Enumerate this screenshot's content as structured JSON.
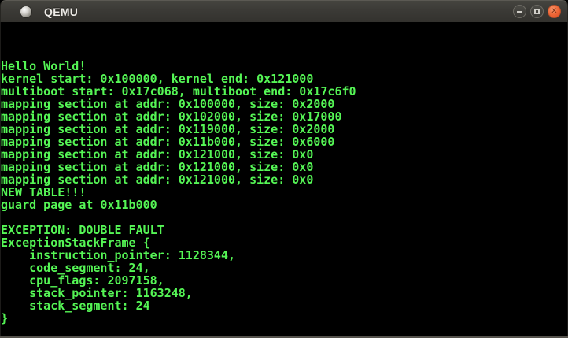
{
  "window": {
    "title": "QEMU",
    "controls": {
      "minimize": "minimize-window",
      "maximize": "maximize-window",
      "close": "close-window"
    }
  },
  "colors": {
    "terminal_text_green": "#55f555",
    "terminal_background": "#000000",
    "titlebar_background": "#3b3a36",
    "close_button_orange": "#ef6a3a"
  },
  "terminal": {
    "columns": 80,
    "rows": 25,
    "lines": [
      "",
      "",
      "",
      "Hello World!",
      "kernel start: 0x100000, kernel end: 0x121000",
      "multiboot start: 0x17c068, multiboot end: 0x17c6f0",
      "mapping section at addr: 0x100000, size: 0x2000",
      "mapping section at addr: 0x102000, size: 0x17000",
      "mapping section at addr: 0x119000, size: 0x2000",
      "mapping section at addr: 0x11b000, size: 0x6000",
      "mapping section at addr: 0x121000, size: 0x0",
      "mapping section at addr: 0x121000, size: 0x0",
      "mapping section at addr: 0x121000, size: 0x0",
      "NEW TABLE!!!",
      "guard page at 0x11b000",
      "",
      "EXCEPTION: DOUBLE FAULT",
      "ExceptionStackFrame {",
      "    instruction_pointer: 1128344,",
      "    code_segment: 24,",
      "    cpu_flags: 2097158,",
      "    stack_pointer: 1163248,",
      "    stack_segment: 24",
      "}",
      ""
    ]
  }
}
